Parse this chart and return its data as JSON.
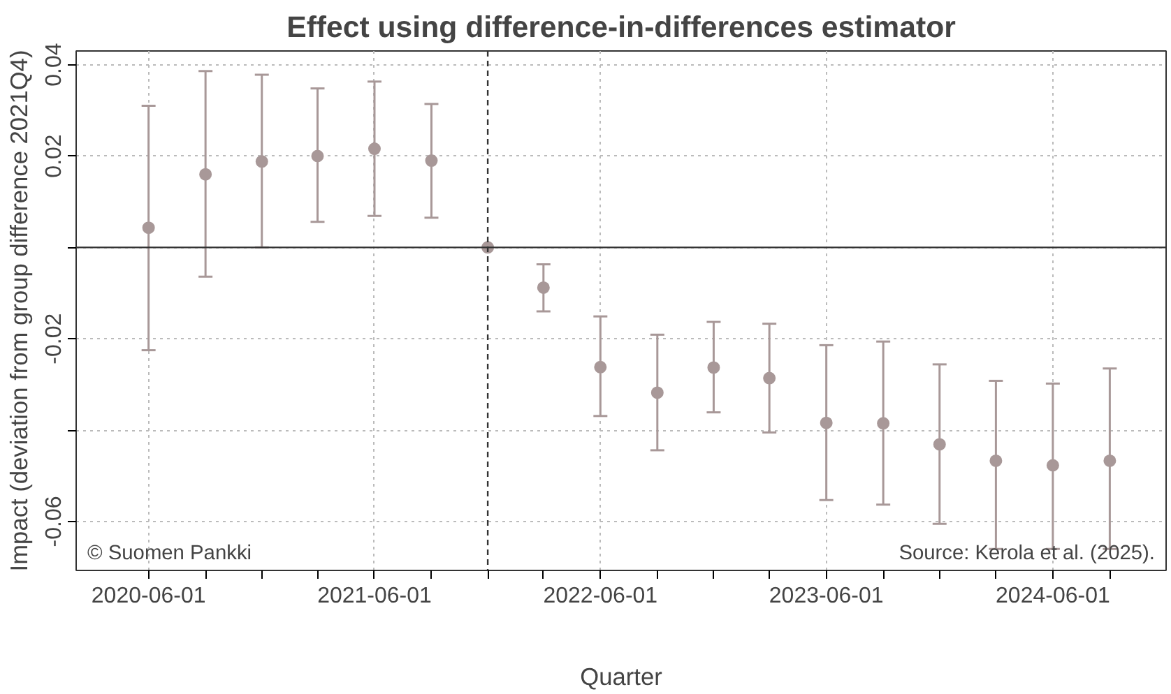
{
  "chart_data": {
    "type": "scatter",
    "title": "Effect using difference-in-differences estimator",
    "xlabel": "Quarter",
    "ylabel": "Impact (deviation from group difference 2021Q4)",
    "x": [
      "2020-06-01",
      "2020-09-01",
      "2020-12-01",
      "2021-03-01",
      "2021-06-01",
      "2021-09-01",
      "2021-12-01",
      "2022-03-01",
      "2022-06-01",
      "2022-09-01",
      "2022-12-01",
      "2023-03-01",
      "2023-06-01",
      "2023-09-01",
      "2023-12-01",
      "2024-03-01",
      "2024-06-01",
      "2024-09-01"
    ],
    "series": [
      {
        "color": "#a89898",
        "values": [
          0.0043,
          0.016,
          0.0188,
          0.02,
          0.0216,
          0.019,
          0,
          -0.0088,
          -0.0262,
          -0.0318,
          -0.0263,
          -0.0286,
          -0.0384,
          -0.0385,
          -0.0431,
          -0.0467,
          -0.0477,
          -0.0467
        ],
        "errors": [
          [
            -0.0225,
            0.031
          ],
          [
            -0.0064,
            0.0386
          ],
          [
            0,
            0.0378
          ],
          [
            0.0056,
            0.0348
          ],
          [
            0.0069,
            0.0363
          ],
          [
            0.0065,
            0.0314
          ],
          null,
          [
            -0.014,
            -0.0037
          ],
          [
            -0.0369,
            -0.0151
          ],
          [
            -0.0444,
            -0.0191
          ],
          [
            -0.0361,
            -0.0163
          ],
          [
            -0.0405,
            -0.0167
          ],
          [
            -0.0553,
            -0.0214
          ],
          [
            -0.0563,
            -0.0206
          ],
          [
            -0.0605,
            -0.0256
          ],
          [
            -0.066,
            -0.0292
          ],
          [
            -0.066,
            -0.0298
          ],
          [
            -0.066,
            -0.0265
          ]
        ]
      }
    ],
    "xlim": [
      "2020-02-05",
      "2024-12-01"
    ],
    "xticks": [
      {
        "value": "2020-06-01",
        "label": "2020-06-01"
      },
      {
        "value": "2020-09-01",
        "label": null
      },
      {
        "value": "2020-12-01",
        "label": null
      },
      {
        "value": "2021-03-01",
        "label": null
      },
      {
        "value": "2021-06-01",
        "label": "2021-06-01"
      },
      {
        "value": "2021-09-01",
        "label": null
      },
      {
        "value": "2021-12-01",
        "label": null
      },
      {
        "value": "2022-03-01",
        "label": null
      },
      {
        "value": "2022-06-01",
        "label": "2022-06-01"
      },
      {
        "value": "2022-09-01",
        "label": null
      },
      {
        "value": "2022-12-01",
        "label": null
      },
      {
        "value": "2023-03-01",
        "label": null
      },
      {
        "value": "2023-06-01",
        "label": "2023-06-01"
      },
      {
        "value": "2023-09-01",
        "label": null
      },
      {
        "value": "2023-12-01",
        "label": null
      },
      {
        "value": "2024-03-01",
        "label": null
      },
      {
        "value": "2024-06-01",
        "label": "2024-06-01"
      },
      {
        "value": "2024-09-01",
        "label": null
      }
    ],
    "ylim": [
      -0.0707,
      0.043
    ],
    "yticks": [
      -0.06,
      {
        "value": -0.04,
        "label": null
      },
      -0.02,
      {
        "value": 0,
        "label": null
      },
      0.02,
      0.04
    ],
    "ref_lines": [
      {
        "axis": "y",
        "value": 0,
        "color": "#333333",
        "line_style": "solid"
      },
      {
        "axis": "x",
        "value": "2021-12-01",
        "color": "#333333",
        "line_style": "dashed"
      }
    ],
    "annotations": [
      "© Suomen Pankki",
      "Source: Kerola et al. (2025)."
    ],
    "grid": true,
    "marker": "circle"
  }
}
